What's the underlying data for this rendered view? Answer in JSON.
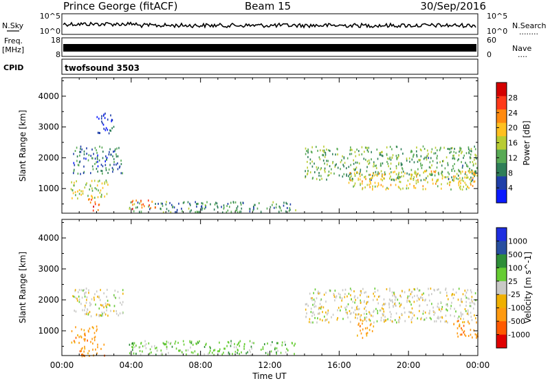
{
  "header": {
    "station": "Prince George (fitACF)",
    "beam": "Beam 15",
    "date": "30/Sep/2016"
  },
  "panels": {
    "nsky": {
      "label": "N.Sky",
      "left_ticks": [
        "10^5",
        "10^0"
      ],
      "right_ticks": [
        "10^5",
        "10^0"
      ],
      "right_label": "N.Search",
      "right_dots": "........"
    },
    "freq": {
      "label_top": "Freq.",
      "label_bottom": "[MHz]",
      "left_ticks": [
        "18",
        "8"
      ],
      "right_ticks": [
        "60",
        "0"
      ],
      "right_label": "Nave",
      "right_dots": "...."
    },
    "cpid": {
      "label": "CPID",
      "value": "twofsound 3503"
    }
  },
  "colors": {
    "power": [
      "#0a1aff",
      "#1f3fa8",
      "#2e7e58",
      "#58aa55",
      "#b8cc33",
      "#ffc020",
      "#ff8a10",
      "#ff3a1a",
      "#d40000"
    ],
    "velocity": [
      "#e00000",
      "#ff5a00",
      "#ff9a10",
      "#f0b000",
      "#c9c9c6",
      "#66cc33",
      "#2e8e38",
      "#284fa0",
      "#1e2ee0"
    ]
  },
  "chart_data": [
    {
      "type": "heatmap",
      "ylabel": "Slant Range [km]",
      "xlabel": "",
      "x_ticks": [
        "00:00",
        "04:00",
        "08:00",
        "12:00",
        "16:00",
        "20:00",
        "00:00"
      ],
      "y_ticks": [
        "1000",
        "2000",
        "3000",
        "4000"
      ],
      "ylim": [
        200,
        4600
      ],
      "xlim_hours": [
        0,
        24
      ],
      "colorbar": {
        "label": "Power [dB]",
        "ticks": [
          "4",
          "8",
          "12",
          "16",
          "20",
          "24",
          "28"
        ],
        "range": [
          0,
          32
        ]
      },
      "scatter_regions": [
        {
          "t": [
            0.6,
            3.5
          ],
          "r": [
            1500,
            2400
          ],
          "v": 8
        },
        {
          "t": [
            0.5,
            2.8
          ],
          "r": [
            700,
            1300
          ],
          "v": 16
        },
        {
          "t": [
            1.5,
            2.2
          ],
          "r": [
            300,
            700
          ],
          "v": 26
        },
        {
          "t": [
            3.8,
            13.5
          ],
          "r": [
            250,
            600
          ],
          "v": 10
        },
        {
          "t": [
            4.0,
            5.5
          ],
          "r": [
            350,
            650
          ],
          "v": 26
        },
        {
          "t": [
            14.0,
            24.0
          ],
          "r": [
            1300,
            2400
          ],
          "v": 12
        },
        {
          "t": [
            16.5,
            24.0
          ],
          "r": [
            1000,
            1600
          ],
          "v": 18
        },
        {
          "t": [
            2.0,
            3.0
          ],
          "r": [
            2800,
            3500
          ],
          "v": 6
        }
      ]
    },
    {
      "type": "heatmap",
      "ylabel": "Slant Range [km]",
      "xlabel": "Time UT",
      "x_ticks": [
        "00:00",
        "04:00",
        "08:00",
        "12:00",
        "16:00",
        "20:00",
        "00:00"
      ],
      "y_ticks": [
        "1000",
        "2000",
        "3000",
        "4000"
      ],
      "ylim": [
        200,
        4600
      ],
      "xlim_hours": [
        0,
        24
      ],
      "colorbar": {
        "label": "Velocity [m s^-1]",
        "ticks": [
          "1000",
          "500",
          "100",
          "25",
          "-25",
          "-100",
          "-500",
          "-1000"
        ]
      },
      "scatter_regions": [
        {
          "t": [
            0.6,
            3.5
          ],
          "r": [
            1500,
            2400
          ],
          "v": 0
        },
        {
          "t": [
            0.5,
            2.0
          ],
          "r": [
            600,
            1200
          ],
          "v": -100
        },
        {
          "t": [
            1.0,
            2.5
          ],
          "r": [
            200,
            600
          ],
          "v": -100
        },
        {
          "t": [
            3.8,
            13.5
          ],
          "r": [
            250,
            700
          ],
          "v": 50
        },
        {
          "t": [
            14.0,
            24.0
          ],
          "r": [
            1300,
            2400
          ],
          "v": 0
        },
        {
          "t": [
            17.0,
            18.0
          ],
          "r": [
            800,
            1400
          ],
          "v": -100
        },
        {
          "t": [
            22.5,
            24.0
          ],
          "r": [
            800,
            1400
          ],
          "v": -100
        }
      ]
    }
  ]
}
